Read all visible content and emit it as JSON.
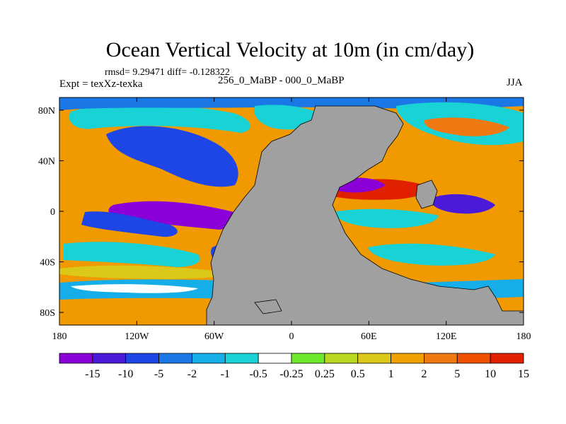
{
  "title": "Ocean Vertical Velocity at 10m (in cm/day)",
  "stats": "rmsd= 9.29471 diff= -0.128322",
  "experiment": "Expt = texXz-texka",
  "difference_label": "256_0_MaBP - 000_0_MaBP",
  "season": "JJA",
  "map": {
    "land_color": "#a0a0a0",
    "lat_ticks": [
      "80N",
      "40N",
      "0",
      "40S",
      "80S"
    ],
    "lat_values": [
      80,
      40,
      0,
      -40,
      -80
    ],
    "lon_ticks": [
      "180",
      "120W",
      "60W",
      "0",
      "60E",
      "120E",
      "180"
    ],
    "lon_values": [
      -180,
      -120,
      -60,
      0,
      60,
      120,
      180
    ]
  },
  "colorbar": {
    "colors": [
      "#8a00d6",
      "#4a1ad8",
      "#1e46e6",
      "#1a78e6",
      "#16aee8",
      "#18d2d6",
      "#ffffff",
      "#6ee82a",
      "#b8d81e",
      "#dcc818",
      "#f0a000",
      "#f07810",
      "#f05000",
      "#e02000"
    ],
    "labels": [
      "-15",
      "-10",
      "-5",
      "-2",
      "-1",
      "-0.5",
      "-0.25",
      "0.25",
      "0.5",
      "1",
      "2",
      "5",
      "10",
      "15"
    ]
  }
}
